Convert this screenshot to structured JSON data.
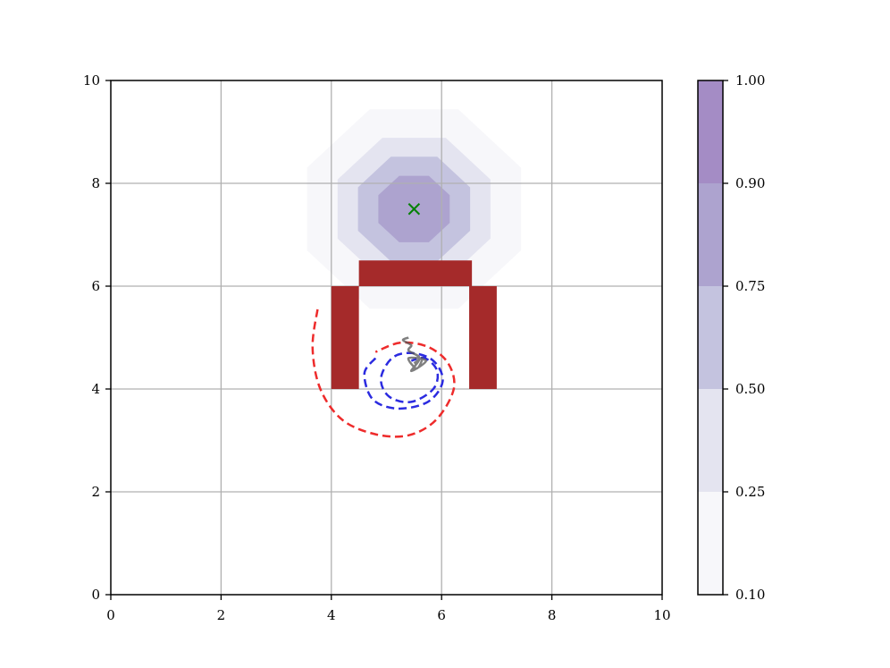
{
  "chart_data": {
    "type": "contour",
    "xlim": [
      0,
      10
    ],
    "ylim": [
      0,
      10
    ],
    "x_ticks": [
      "0",
      "2",
      "4",
      "6",
      "8",
      "10"
    ],
    "y_ticks": [
      "0",
      "2",
      "4",
      "6",
      "8",
      "10"
    ],
    "grid": true,
    "contour": {
      "center": [
        5.5,
        7.5
      ],
      "levels": [
        0.1,
        0.25,
        0.5,
        0.75,
        0.9,
        1.0
      ],
      "level_labels": [
        "0.10",
        "0.25",
        "0.50",
        "0.75",
        "0.90",
        "1.00"
      ],
      "fill_colors": [
        "#f7f7fa",
        "#e4e4f0",
        "#c4c3df",
        "#ada3cf",
        "#a48cc5"
      ],
      "band_radii": [
        2.1,
        1.5,
        1.1,
        0.7
      ]
    },
    "goal_marker": {
      "x": 5.5,
      "y": 7.5,
      "symbol": "x",
      "color": "#008000"
    },
    "obstacles": [
      {
        "x0": 4.0,
        "x1": 4.5,
        "y0": 4.0,
        "y1": 6.0
      },
      {
        "x0": 6.5,
        "x1": 7.0,
        "y0": 4.0,
        "y1": 6.0
      },
      {
        "x0": 4.5,
        "x1": 6.55,
        "y0": 6.0,
        "y1": 6.5
      }
    ],
    "obstacle_color": "#a52a2a",
    "trajectories": [
      {
        "color": "#ee2b2b",
        "dash": true,
        "points": [
          [
            3.75,
            5.55
          ],
          [
            3.66,
            4.8
          ],
          [
            3.8,
            4.0
          ],
          [
            4.2,
            3.4
          ],
          [
            4.8,
            3.12
          ],
          [
            5.4,
            3.1
          ],
          [
            5.9,
            3.4
          ],
          [
            6.22,
            4.0
          ],
          [
            6.12,
            4.5
          ],
          [
            5.75,
            4.82
          ],
          [
            5.25,
            4.9
          ],
          [
            4.8,
            4.72
          ]
        ]
      },
      {
        "color": "#2b2be0",
        "dash": true,
        "points": [
          [
            4.8,
            4.6
          ],
          [
            4.6,
            4.3
          ],
          [
            4.75,
            3.8
          ],
          [
            5.2,
            3.62
          ],
          [
            5.75,
            3.75
          ],
          [
            6.02,
            4.15
          ],
          [
            5.85,
            4.55
          ],
          [
            5.45,
            4.7
          ],
          [
            5.1,
            4.6
          ],
          [
            4.9,
            4.2
          ],
          [
            5.05,
            3.85
          ],
          [
            5.45,
            3.75
          ],
          [
            5.85,
            4.0
          ],
          [
            5.92,
            4.35
          ],
          [
            5.7,
            4.6
          ],
          [
            5.45,
            4.55
          ]
        ]
      },
      {
        "color": "#555555",
        "dash": false,
        "points": [
          [
            5.4,
            5.0
          ],
          [
            5.3,
            4.95
          ],
          [
            5.45,
            4.85
          ],
          [
            5.4,
            4.75
          ],
          [
            5.6,
            4.6
          ],
          [
            5.45,
            4.35
          ],
          [
            5.72,
            4.55
          ],
          [
            5.4,
            4.6
          ],
          [
            5.55,
            4.4
          ],
          [
            5.65,
            4.6
          ],
          [
            5.5,
            4.5
          ]
        ]
      }
    ],
    "colorbar": {
      "ticks": [
        "0.10",
        "0.25",
        "0.50",
        "0.75",
        "0.90",
        "1.00"
      ]
    }
  }
}
